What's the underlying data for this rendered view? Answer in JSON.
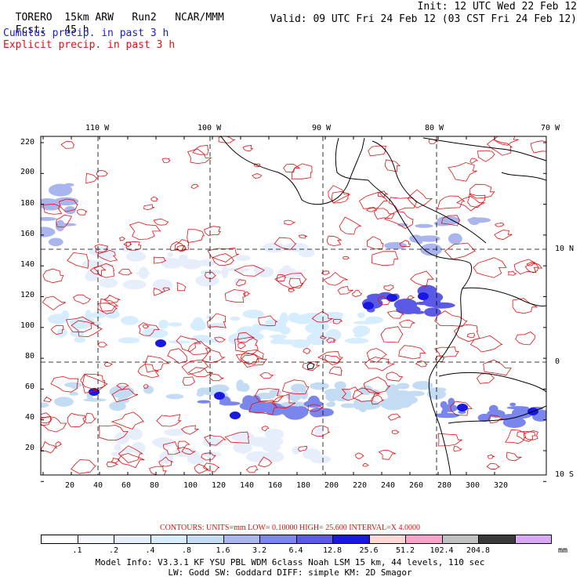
{
  "header": {
    "model": "TORERO",
    "grid": "15km ARW",
    "run": "Run2",
    "org": "NCAR/MMM",
    "fcst_label": "Fcst:",
    "fcst_hours": "45 h",
    "init": "Init: 12 UTC Wed 22 Feb 12",
    "valid": "Valid: 09 UTC Fri 24 Feb 12 (03 CST Fri 24 Feb 12)",
    "line1": "Cumulus precip. in past 3 h",
    "line2": "Explicit precip. in past 3 h"
  },
  "map": {
    "lon_labels": [
      "110 W",
      "100 W",
      "90 W",
      "80 W",
      "70 W"
    ],
    "lat_labels": [
      "10 N",
      "0",
      "10 S"
    ],
    "y_ticks": [
      "220",
      "200",
      "180",
      "160",
      "140",
      "120",
      "100",
      "80",
      "60",
      "40",
      "20"
    ],
    "x_ticks": [
      "20",
      "40",
      "60",
      "80",
      "100",
      "120",
      "140",
      "160",
      "180",
      "200",
      "220",
      "240",
      "260",
      "280",
      "300",
      "320"
    ],
    "colors": {
      "contour": "#e01010",
      "coast": "#000000",
      "grid": "#000000"
    }
  },
  "contours_line": "CONTOURS:  UNITS=mm  LOW= 0.10000     HIGH=  25.600     INTERVAL=X  4.0000",
  "legend": {
    "unit": "mm",
    "labels": [
      ".1",
      ".2",
      ".4",
      ".8",
      "1.6",
      "3.2",
      "6.4",
      "12.8",
      "25.6",
      "51.2",
      "102.4",
      "204.8"
    ],
    "colors": [
      "#ffffff",
      "#f5f8ff",
      "#e6eefc",
      "#d6ecff",
      "#c3dbf3",
      "#a9b5ec",
      "#7b86ec",
      "#5a5ae6",
      "#1818e0",
      "#ffd6d6",
      "#f7a4c8",
      "#c0c0c0",
      "#3a3a3a",
      "#d8a8f3"
    ]
  },
  "model_info": {
    "line1": "Model Info: V3.3.1    KF     YSU PBL  WDM 6class  Noah LSM  15 km,   44 levels,  110 sec",
    "line2": "LW: Godd SW: Goddard DIFF: simple KM: 2D Smagor"
  }
}
